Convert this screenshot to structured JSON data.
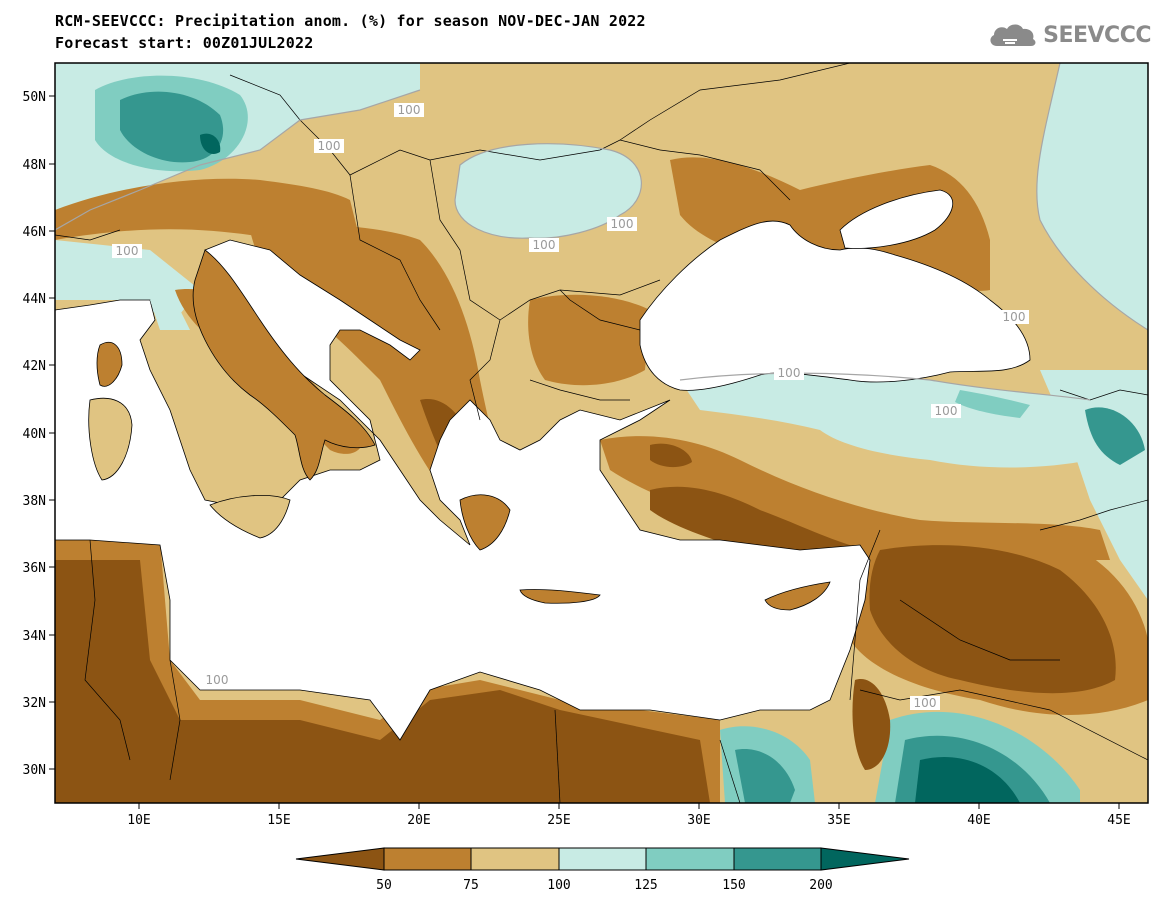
{
  "header": {
    "title_line1": "RCM-SEEVCCC: Precipitation anom. (%) for season NOV-DEC-JAN 2022",
    "title_line2": "Forecast start: 00Z01JUL2022"
  },
  "logo": {
    "icon": "cloud-logo-icon",
    "text": "SEEVCCC"
  },
  "map": {
    "lat_labels": [
      "50N",
      "48N",
      "46N",
      "44N",
      "42N",
      "40N",
      "38N",
      "36N",
      "34N",
      "32N",
      "30N"
    ],
    "lon_labels": [
      "10E",
      "15E",
      "20E",
      "25E",
      "30E",
      "35E",
      "40E",
      "45E"
    ],
    "contour_labels": [
      "100",
      "100",
      "100",
      "100",
      "100",
      "100",
      "100",
      "100",
      "100",
      "100"
    ]
  },
  "colorbar": {
    "ticks": [
      "50",
      "75",
      "100",
      "125",
      "150",
      "200"
    ],
    "colors": [
      "#8c5413",
      "#bd8030",
      "#e0c482",
      "#c8ebe4",
      "#80cdc1",
      "#35978f",
      "#01665e"
    ]
  }
}
